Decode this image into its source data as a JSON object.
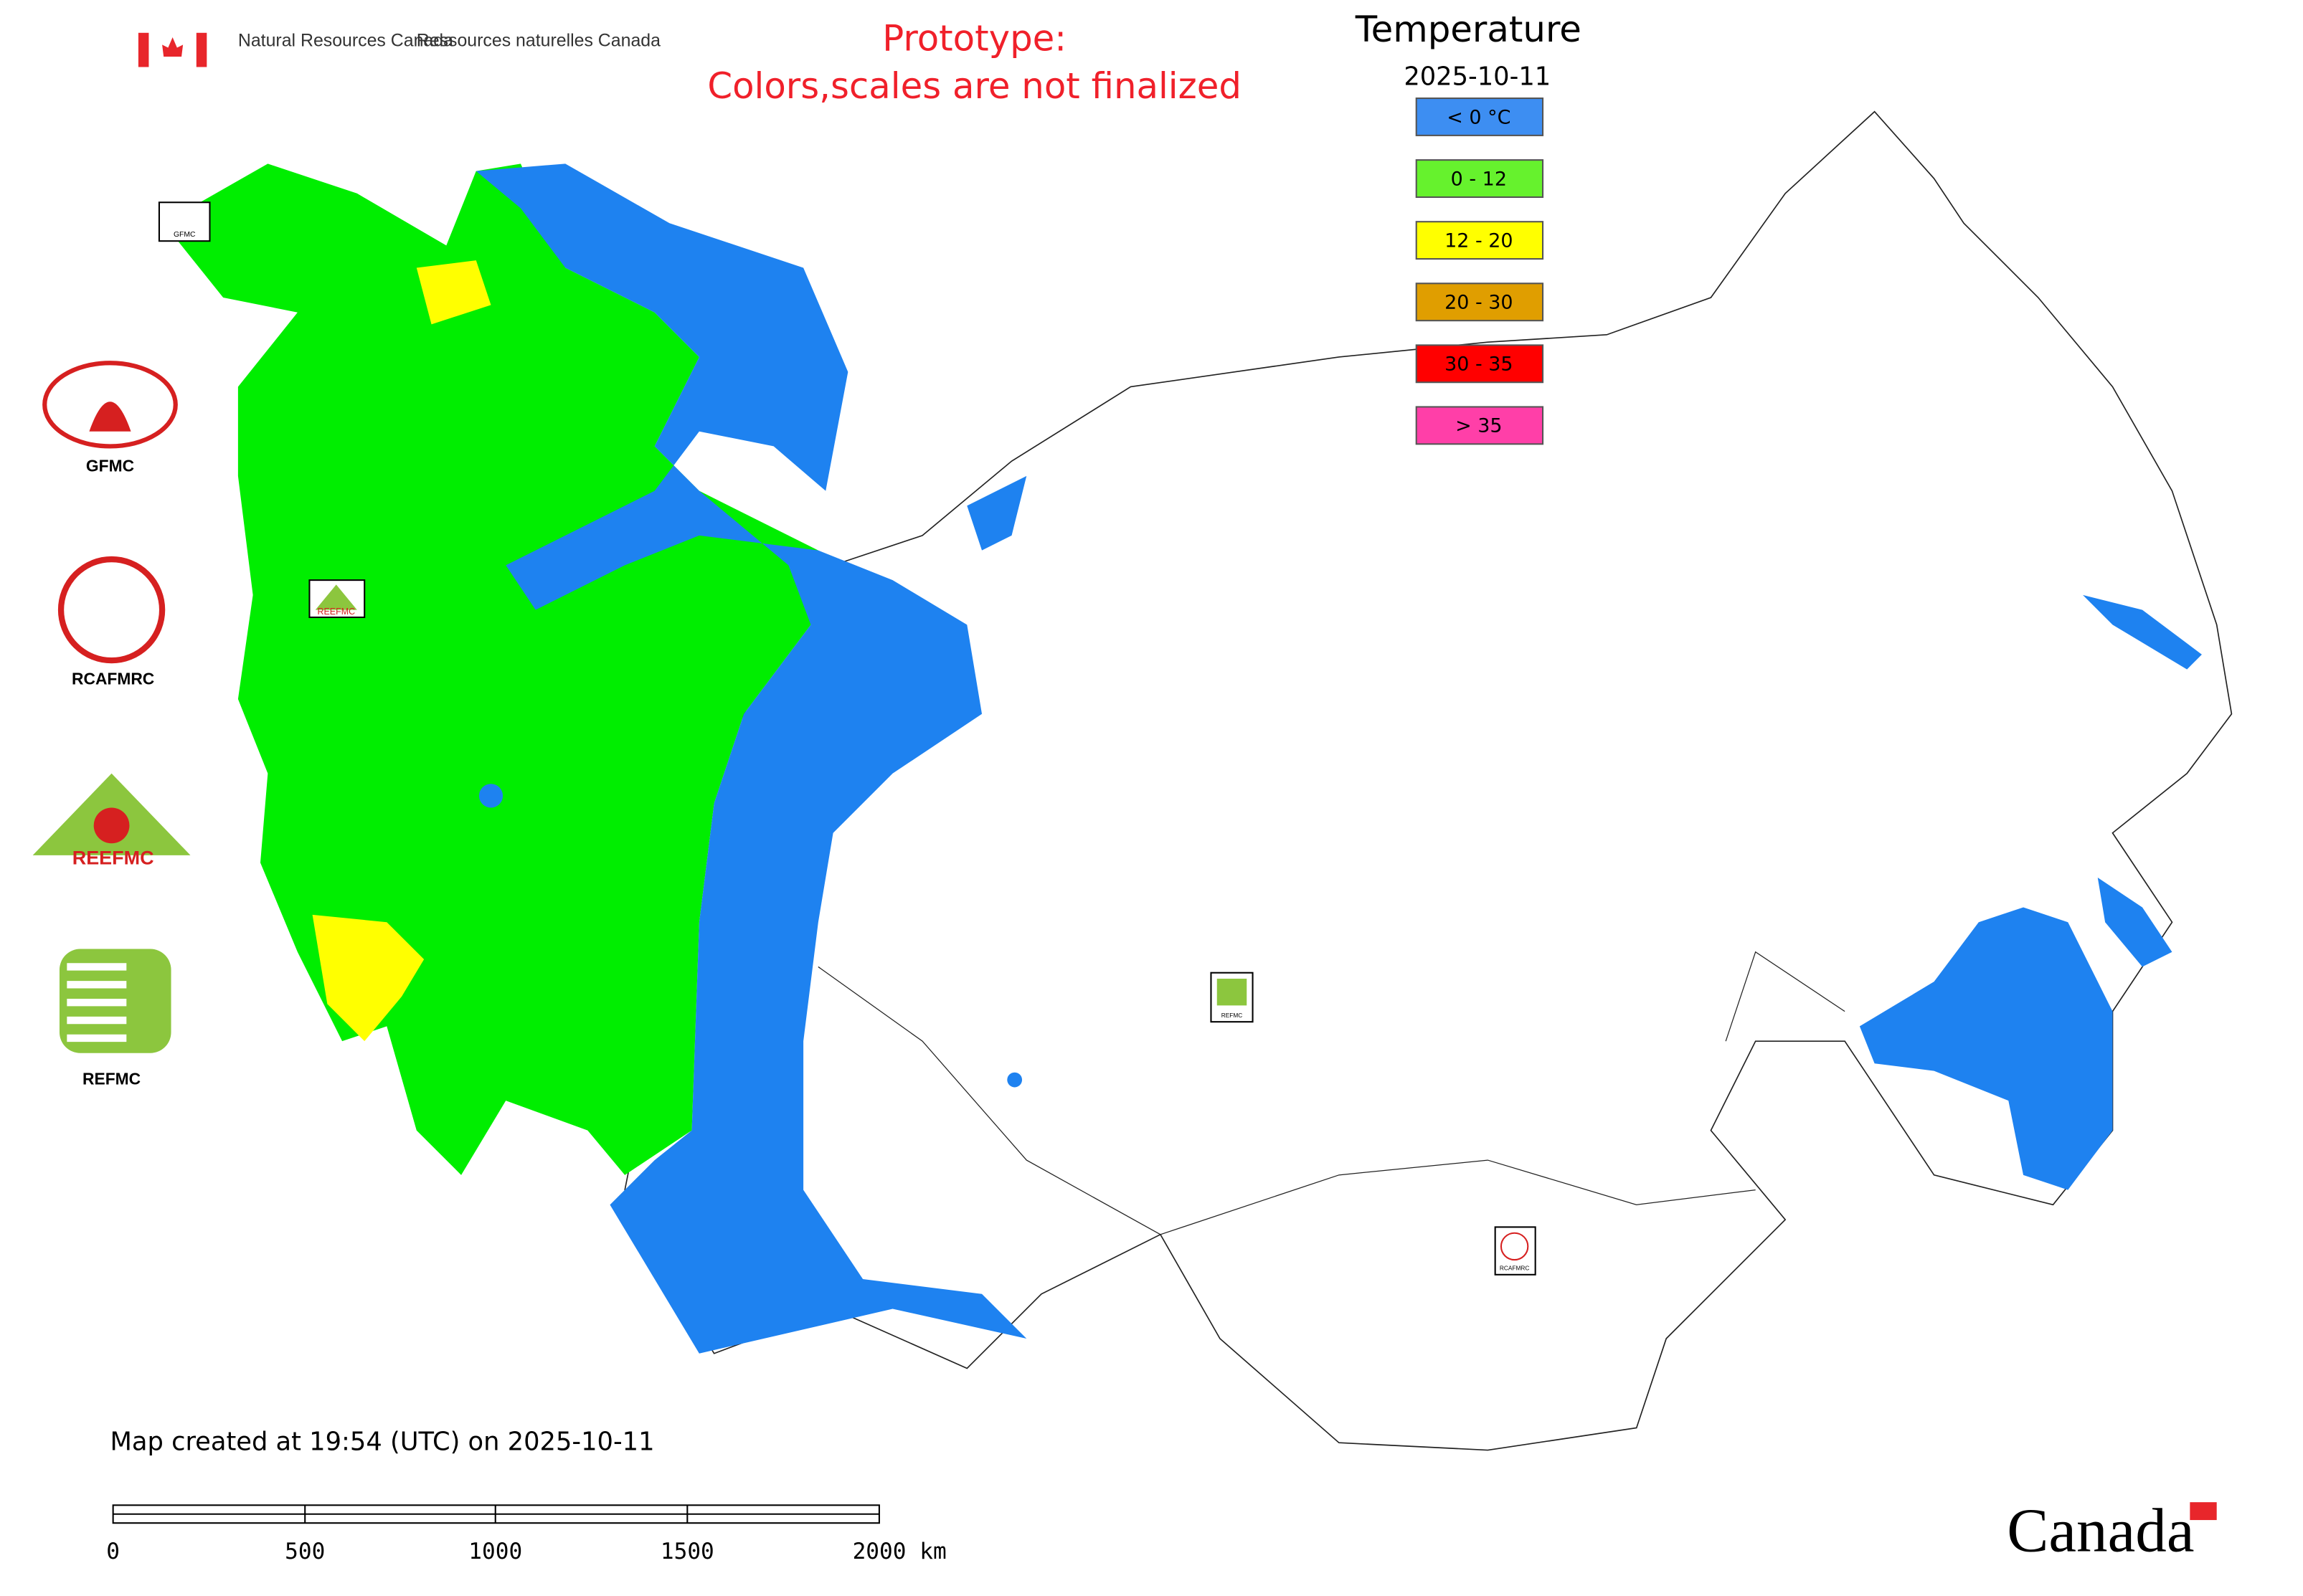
{
  "header": {
    "agency_en": "Natural Resources Canada",
    "agency_fr": "Ressources naturelles Canada"
  },
  "notice": {
    "line1": "Prototype:",
    "line2": "Colors,scales are not finalized"
  },
  "legend": {
    "title": "Temperature",
    "date": "2025-10-11",
    "items": [
      {
        "label": "< 0 °C",
        "color": "#3d8ef2"
      },
      {
        "label": "0 - 12",
        "color": "#66f22d"
      },
      {
        "label": "12 - 20",
        "color": "#ffff00"
      },
      {
        "label": "20 - 30",
        "color": "#e09e00"
      },
      {
        "label": "30 - 35",
        "color": "#ff0000"
      },
      {
        "label": "> 35",
        "color": "#ff3fa8"
      }
    ]
  },
  "logos": [
    "GFMC",
    "RCAFMRC",
    "REEFMC",
    "REFMC"
  ],
  "map_badges": [
    "GFMC",
    "REEFMC",
    "REFMC",
    "RCAFMRC"
  ],
  "footer": {
    "created": "Map created at 19:54 (UTC) on 2025-10-11",
    "scale_labels": [
      "0",
      "500",
      "1000",
      "1500",
      "2000 km"
    ],
    "wordmark": "Canada"
  }
}
